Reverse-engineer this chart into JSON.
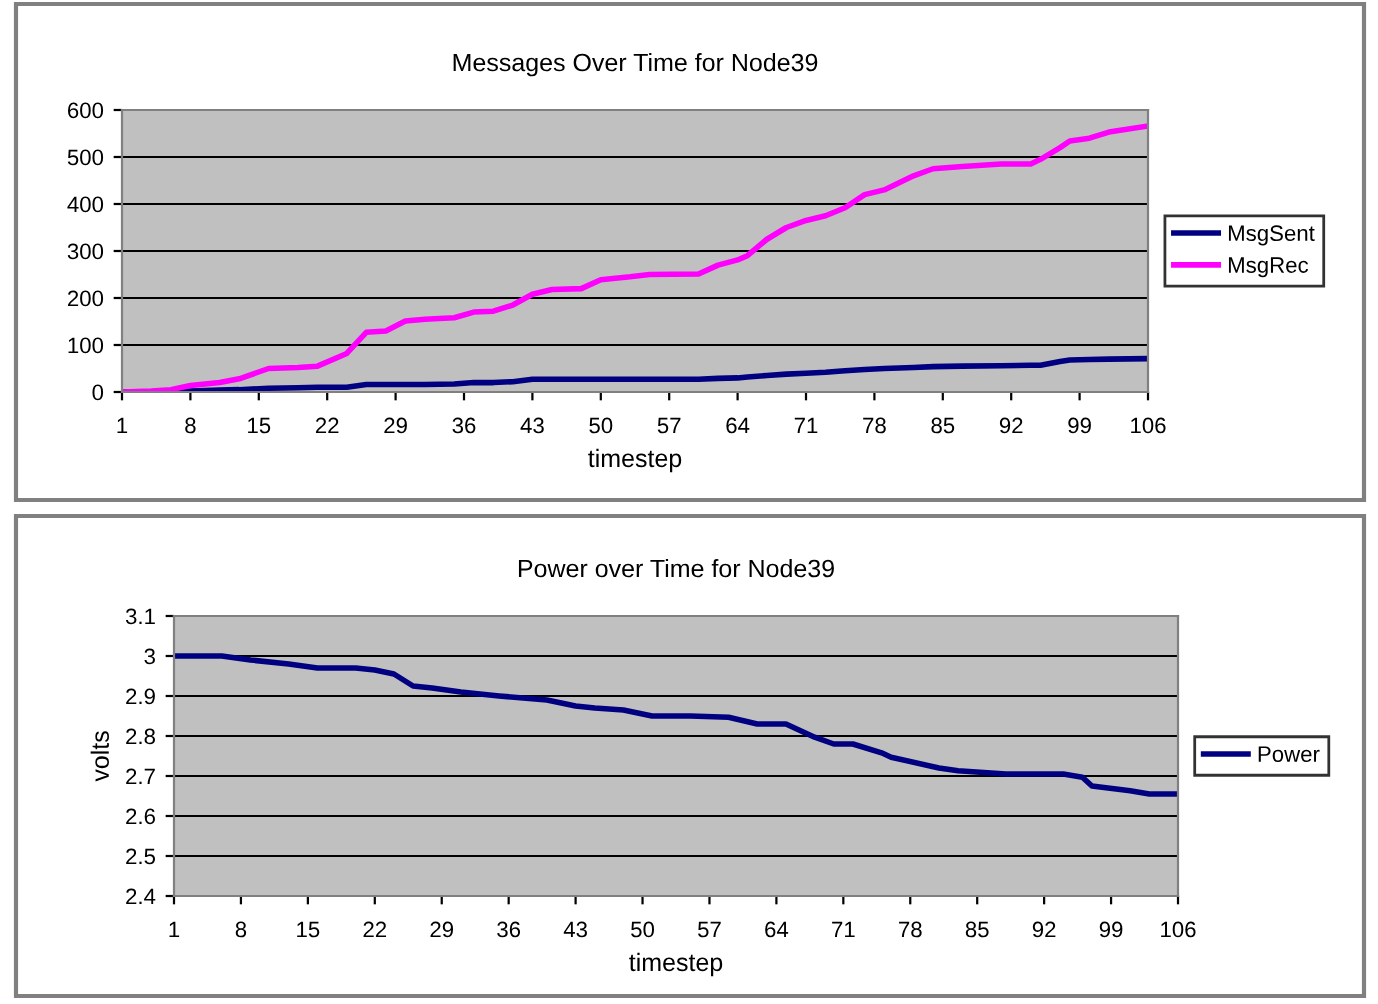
{
  "chart_data": [
    {
      "type": "line",
      "title": "Messages Over Time for Node39",
      "xlabel": "timestep",
      "x": [
        1,
        4,
        6,
        8,
        11,
        13,
        16,
        19,
        21,
        24,
        26,
        28,
        30,
        32,
        35,
        37,
        39,
        41,
        43,
        45,
        48,
        50,
        53,
        55,
        60,
        62,
        64,
        65,
        67,
        69,
        71,
        73,
        75,
        77,
        79,
        82,
        84,
        87,
        91,
        94,
        95,
        97,
        98,
        100,
        102,
        106
      ],
      "xlim": [
        1,
        106
      ],
      "xticks": [
        1,
        8,
        15,
        22,
        29,
        36,
        43,
        50,
        57,
        64,
        71,
        78,
        85,
        92,
        99,
        106
      ],
      "ylim": [
        0,
        600
      ],
      "yticks": [
        0,
        100,
        200,
        300,
        400,
        500,
        600
      ],
      "grid": "y",
      "legend": "right",
      "line_style": "solid",
      "marker": "none",
      "series": [
        {
          "name": "MsgSent",
          "color": "#000080",
          "x": [
            1,
            4,
            8,
            11,
            13,
            16,
            19,
            21,
            24,
            26,
            28,
            30,
            32,
            35,
            37,
            39,
            41,
            43,
            45,
            48,
            50,
            53,
            55,
            60,
            62,
            64,
            65,
            67,
            69,
            71,
            73,
            75,
            77,
            79,
            82,
            84,
            87,
            91,
            94,
            95,
            97,
            98,
            100,
            102,
            106
          ],
          "values": [
            0,
            0,
            2,
            4,
            5,
            8,
            9,
            10,
            10,
            16,
            16,
            16,
            16,
            17,
            20,
            20,
            22,
            27,
            27,
            27,
            27,
            27,
            27,
            27,
            29,
            30,
            32,
            35,
            38,
            40,
            42,
            45,
            48,
            50,
            52,
            54,
            55,
            56,
            57,
            57,
            65,
            68,
            69,
            70,
            71
          ]
        },
        {
          "name": "MsgRec",
          "color": "#ff00ff",
          "values": [
            0,
            2,
            5,
            14,
            20,
            28,
            50,
            52,
            55,
            82,
            127,
            130,
            151,
            155,
            158,
            170,
            172,
            185,
            208,
            218,
            220,
            239,
            245,
            250,
            251,
            270,
            281,
            290,
            325,
            350,
            365,
            375,
            392,
            420,
            430,
            460,
            475,
            480,
            485,
            485,
            495,
            520,
            534,
            540,
            553,
            566
          ]
        }
      ]
    },
    {
      "type": "line",
      "title": "Power over Time for Node39",
      "xlabel": "timestep",
      "ylabel": "volts",
      "x": [
        1,
        6,
        9,
        13,
        16,
        20,
        22,
        24,
        26,
        28,
        31,
        35,
        40,
        43,
        45,
        48,
        51,
        55,
        59,
        62,
        65,
        68,
        70,
        72,
        75,
        76,
        81,
        83,
        88,
        94,
        96,
        97,
        101,
        103,
        106
      ],
      "xlim": [
        1,
        106
      ],
      "xticks": [
        1,
        8,
        15,
        22,
        29,
        36,
        43,
        50,
        57,
        64,
        71,
        78,
        85,
        92,
        99,
        106
      ],
      "ylim": [
        2.4,
        3.1
      ],
      "yticks": [
        2.4,
        2.5,
        2.6,
        2.7,
        2.8,
        2.9,
        3,
        3.1
      ],
      "grid": "y",
      "legend": "right",
      "line_style": "solid",
      "marker": "none",
      "series": [
        {
          "name": "Power",
          "color": "#000080",
          "values": [
            3,
            3,
            2.99,
            2.98,
            2.97,
            2.97,
            2.965,
            2.955,
            2.925,
            2.92,
            2.91,
            2.9,
            2.89,
            2.875,
            2.87,
            2.865,
            2.85,
            2.85,
            2.847,
            2.83,
            2.83,
            2.797,
            2.78,
            2.78,
            2.758,
            2.747,
            2.72,
            2.713,
            2.705,
            2.705,
            2.697,
            2.675,
            2.663,
            2.655,
            2.655
          ]
        }
      ]
    }
  ]
}
